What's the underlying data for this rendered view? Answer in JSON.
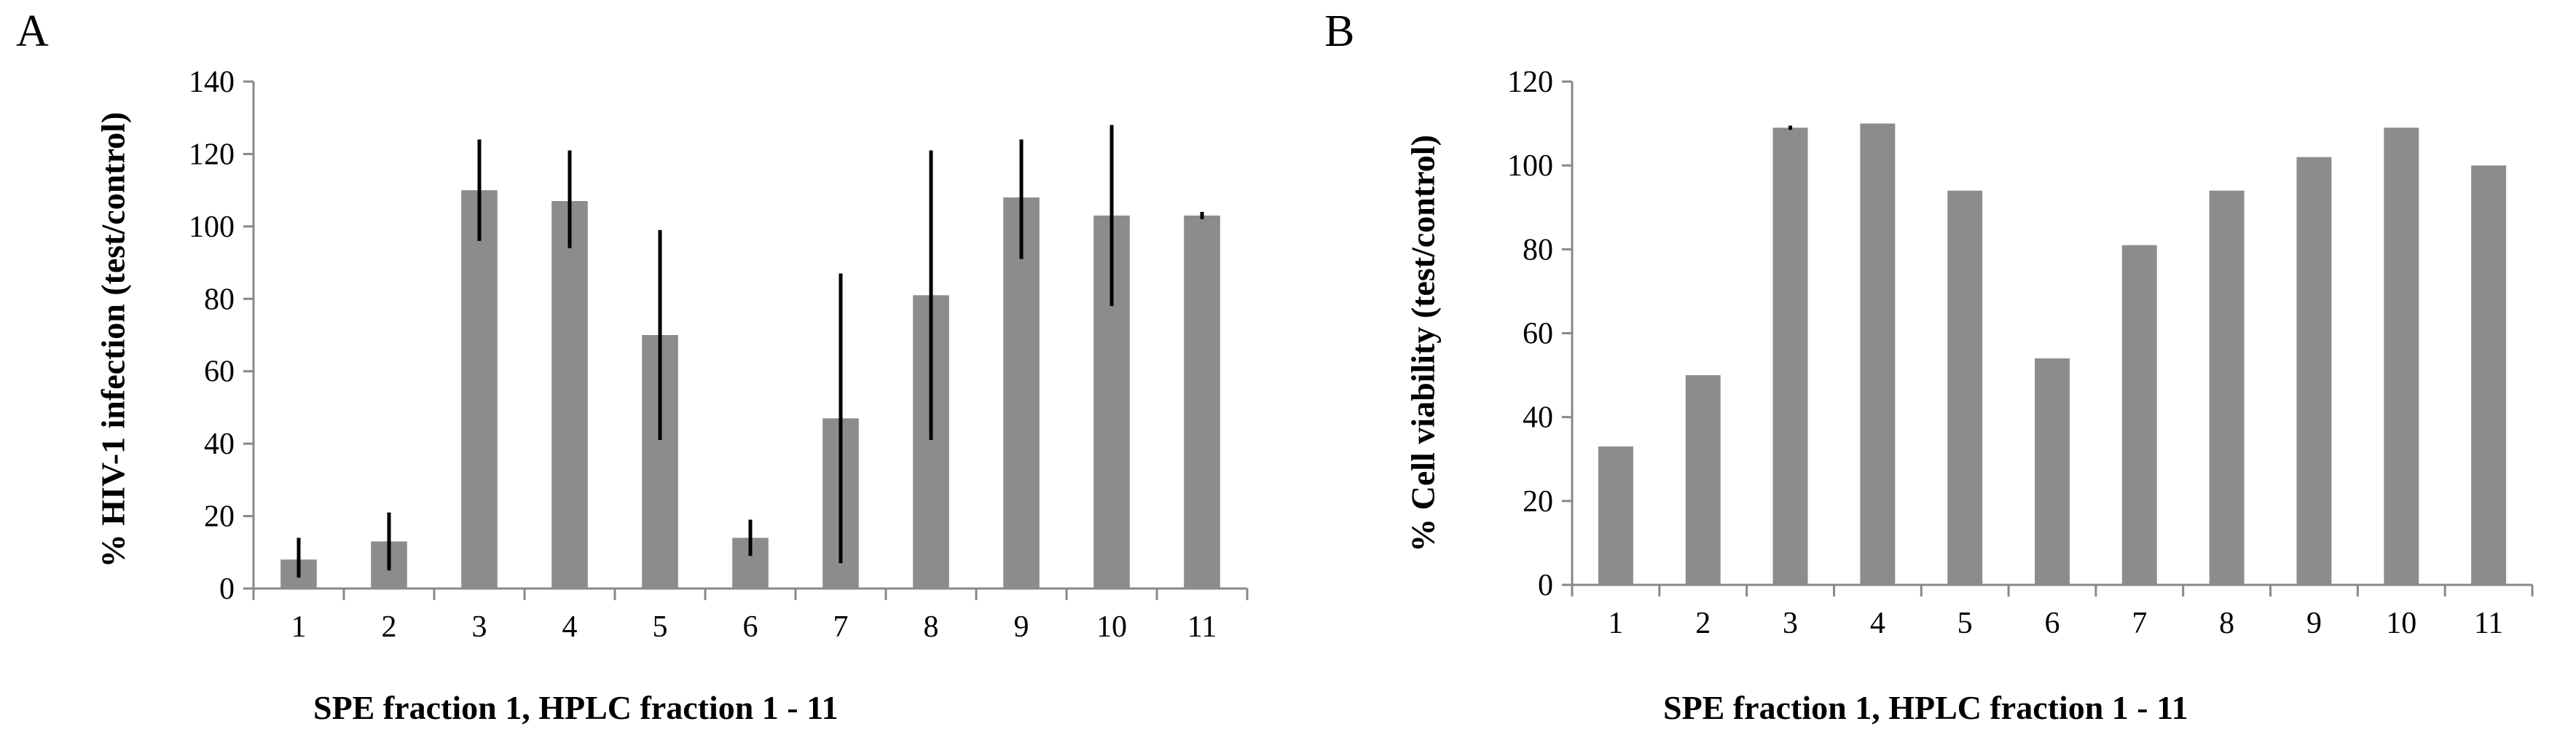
{
  "colors": {
    "bar": "#8c8c8c",
    "axis": "#888888",
    "error_bar": "#000000"
  },
  "chart_data": [
    {
      "type": "bar",
      "panel_label": "A",
      "categories": [
        "1",
        "2",
        "3",
        "4",
        "5",
        "6",
        "7",
        "8",
        "9",
        "10",
        "11"
      ],
      "values": [
        8,
        13,
        110,
        107,
        70,
        14,
        47,
        81,
        108,
        103,
        103
      ],
      "error_bars": [
        {
          "low": 3,
          "high": 14
        },
        {
          "low": 5,
          "high": 21
        },
        {
          "low": 96,
          "high": 124
        },
        {
          "low": 94,
          "high": 121
        },
        {
          "low": 41,
          "high": 99
        },
        {
          "low": 9,
          "high": 19
        },
        {
          "low": 7,
          "high": 87
        },
        {
          "low": 41,
          "high": 121
        },
        {
          "low": 91,
          "high": 124
        },
        {
          "low": 78,
          "high": 128
        },
        {
          "low": 102,
          "high": 104
        }
      ],
      "xlabel": "SPE fraction 1, HPLC fraction 1 - 11",
      "ylabel": "% HIV-1 infection (test/control)",
      "ylim": [
        0,
        140
      ],
      "yticks": [
        0,
        20,
        40,
        60,
        80,
        100,
        120,
        140
      ],
      "grid": false
    },
    {
      "type": "bar",
      "panel_label": "B",
      "categories": [
        "1",
        "2",
        "3",
        "4",
        "5",
        "6",
        "7",
        "8",
        "9",
        "10",
        "11"
      ],
      "values": [
        33,
        50,
        109,
        110,
        94,
        54,
        81,
        94,
        102,
        109,
        100
      ],
      "error_bars": [
        null,
        null,
        {
          "low": 108.5,
          "high": 109.5
        },
        null,
        null,
        null,
        null,
        null,
        null,
        null,
        null
      ],
      "xlabel": "SPE fraction 1, HPLC fraction 1 - 11",
      "ylabel": "% Cell viability (test/control)",
      "ylim": [
        0,
        120
      ],
      "yticks": [
        0,
        20,
        40,
        60,
        80,
        100,
        120
      ],
      "grid": false
    }
  ]
}
